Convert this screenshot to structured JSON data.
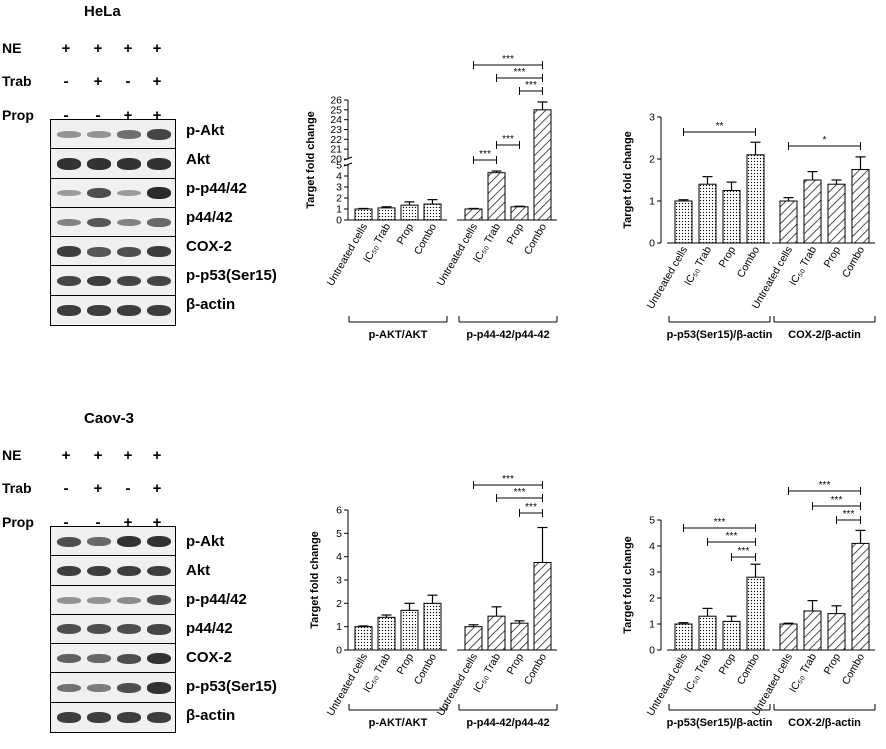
{
  "figure": {
    "panels": [
      {
        "id": "hela",
        "cell_line": "HeLa",
        "treatments": [
          {
            "label": "NE",
            "signs": [
              "+",
              "+",
              "+",
              "+"
            ]
          },
          {
            "label": "Trab",
            "signs": [
              "-",
              "+",
              "-",
              "+"
            ]
          },
          {
            "label": "Prop",
            "signs": [
              "-",
              "-",
              "+",
              "+"
            ]
          }
        ],
        "blot_rows": [
          {
            "protein": "p-Akt",
            "band_intensity": [
              0.35,
              0.35,
              0.55,
              0.8
            ]
          },
          {
            "protein": "Akt",
            "band_intensity": [
              0.9,
              0.9,
              0.9,
              0.9
            ]
          },
          {
            "protein": "p-p44/42",
            "band_intensity": [
              0.3,
              0.75,
              0.3,
              0.95
            ]
          },
          {
            "protein": "p44/42",
            "band_intensity": [
              0.45,
              0.7,
              0.45,
              0.6
            ]
          },
          {
            "protein": "COX-2",
            "band_intensity": [
              0.85,
              0.7,
              0.75,
              0.85
            ]
          },
          {
            "protein": "p-p53(Ser15)",
            "band_intensity": [
              0.8,
              0.85,
              0.8,
              0.8
            ]
          },
          {
            "protein": "β-actin",
            "band_intensity": [
              0.85,
              0.85,
              0.85,
              0.85
            ]
          }
        ]
      },
      {
        "id": "caov3",
        "cell_line": "Caov-3",
        "treatments": [
          {
            "label": "NE",
            "signs": [
              "+",
              "+",
              "+",
              "+"
            ]
          },
          {
            "label": "Trab",
            "signs": [
              "-",
              "+",
              "-",
              "+"
            ]
          },
          {
            "label": "Prop",
            "signs": [
              "-",
              "-",
              "+",
              "+"
            ]
          }
        ],
        "blot_rows": [
          {
            "protein": "p-Akt",
            "band_intensity": [
              0.75,
              0.6,
              0.9,
              0.9
            ]
          },
          {
            "protein": "Akt",
            "band_intensity": [
              0.85,
              0.85,
              0.85,
              0.85
            ]
          },
          {
            "protein": "p-p44/42",
            "band_intensity": [
              0.35,
              0.35,
              0.4,
              0.75
            ]
          },
          {
            "protein": "p44/42",
            "band_intensity": [
              0.75,
              0.75,
              0.75,
              0.8
            ]
          },
          {
            "protein": "COX-2",
            "band_intensity": [
              0.65,
              0.6,
              0.75,
              0.9
            ]
          },
          {
            "protein": "p-p53(Ser15)",
            "band_intensity": [
              0.55,
              0.5,
              0.75,
              0.9
            ]
          },
          {
            "protein": "β-actin",
            "band_intensity": [
              0.85,
              0.85,
              0.85,
              0.85
            ]
          }
        ]
      }
    ]
  },
  "chart_data": [
    {
      "id": "hela-akt-p44",
      "type": "bar",
      "ylabel": "Target fold change",
      "ylim": [
        0,
        26
      ],
      "axis_break": {
        "lower_max": 5,
        "upper_min": 20
      },
      "yticks": [
        0,
        1,
        2,
        3,
        4,
        5,
        20,
        21,
        22,
        23,
        24,
        25,
        26
      ],
      "categories": [
        "Untreated cells",
        "IC₅₀ Trab",
        "Prop",
        "Combo"
      ],
      "groups": [
        {
          "label": "p-AKT/AKT",
          "pattern": "dots",
          "values": [
            1.0,
            1.1,
            1.35,
            1.45
          ],
          "errors": [
            0.05,
            0.1,
            0.3,
            0.4
          ]
        },
        {
          "label": "p-p44-42/p44-42",
          "pattern": "hatch",
          "values": [
            1.0,
            4.3,
            1.2,
            25.0
          ],
          "errors": [
            0.05,
            0.15,
            0.05,
            0.8
          ]
        }
      ],
      "significance": [
        {
          "group": 1,
          "from": 0,
          "to": 3,
          "label": "***"
        },
        {
          "group": 1,
          "from": 1,
          "to": 3,
          "label": "***"
        },
        {
          "group": 1,
          "from": 2,
          "to": 3,
          "label": "***"
        },
        {
          "group": 1,
          "from": 1,
          "to": 2,
          "label": "***"
        },
        {
          "group": 1,
          "from": 0,
          "to": 1,
          "label": "***"
        }
      ]
    },
    {
      "id": "hela-p53-cox2",
      "type": "bar",
      "ylabel": "Target fold change",
      "ylim": [
        0,
        3
      ],
      "yticks": [
        0,
        1,
        2,
        3
      ],
      "categories": [
        "Untreated cells",
        "IC₅₀ Trab",
        "Prop",
        "Combo"
      ],
      "groups": [
        {
          "label": "p-p53(Ser15)/β-actin",
          "pattern": "dots",
          "values": [
            1.0,
            1.4,
            1.25,
            2.1
          ],
          "errors": [
            0.03,
            0.18,
            0.2,
            0.3
          ]
        },
        {
          "label": "COX-2/β-actin",
          "pattern": "hatch",
          "values": [
            1.0,
            1.5,
            1.4,
            1.75
          ],
          "errors": [
            0.08,
            0.2,
            0.1,
            0.3
          ]
        }
      ],
      "significance": [
        {
          "group": 0,
          "from": 0,
          "to": 3,
          "label": "**"
        },
        {
          "group": 1,
          "from": 0,
          "to": 3,
          "label": "*"
        }
      ]
    },
    {
      "id": "caov3-akt-p44",
      "type": "bar",
      "ylabel": "Target fold change",
      "ylim": [
        0,
        6
      ],
      "yticks": [
        0,
        1,
        2,
        3,
        4,
        5,
        6
      ],
      "categories": [
        "Untreated cells",
        "IC₅₀ Trab",
        "Prop",
        "Combo"
      ],
      "groups": [
        {
          "label": "p-AKT/AKT",
          "pattern": "dots",
          "values": [
            1.0,
            1.4,
            1.7,
            2.0
          ],
          "errors": [
            0.03,
            0.1,
            0.3,
            0.35
          ]
        },
        {
          "label": "p-p44-42/p44-42",
          "pattern": "hatch",
          "values": [
            1.0,
            1.45,
            1.15,
            3.75
          ],
          "errors": [
            0.08,
            0.4,
            0.1,
            1.5
          ]
        }
      ],
      "significance": [
        {
          "group": 1,
          "from": 0,
          "to": 3,
          "label": "***"
        },
        {
          "group": 1,
          "from": 1,
          "to": 3,
          "label": "***"
        },
        {
          "group": 1,
          "from": 2,
          "to": 3,
          "label": "***"
        }
      ]
    },
    {
      "id": "caov3-p53-cox2",
      "type": "bar",
      "ylabel": "Target fold change",
      "ylim": [
        0,
        5
      ],
      "yticks": [
        0,
        1,
        2,
        3,
        4,
        5
      ],
      "categories": [
        "Untreated cells",
        "IC₅₀ Trab",
        "Prop",
        "Combo"
      ],
      "groups": [
        {
          "label": "p-p53(Ser15)/β-actin",
          "pattern": "dots",
          "values": [
            1.0,
            1.3,
            1.1,
            2.8
          ],
          "errors": [
            0.05,
            0.3,
            0.2,
            0.5
          ]
        },
        {
          "label": "COX-2/β-actin",
          "pattern": "hatch",
          "values": [
            1.0,
            1.5,
            1.4,
            4.1
          ],
          "errors": [
            0.03,
            0.4,
            0.3,
            0.5
          ]
        }
      ],
      "significance": [
        {
          "group": 0,
          "from": 0,
          "to": 3,
          "label": "***"
        },
        {
          "group": 0,
          "from": 1,
          "to": 3,
          "label": "***"
        },
        {
          "group": 0,
          "from": 2,
          "to": 3,
          "label": "***"
        },
        {
          "group": 1,
          "from": 0,
          "to": 3,
          "label": "***"
        },
        {
          "group": 1,
          "from": 1,
          "to": 3,
          "label": "***"
        },
        {
          "group": 1,
          "from": 2,
          "to": 3,
          "label": "***"
        }
      ]
    }
  ]
}
